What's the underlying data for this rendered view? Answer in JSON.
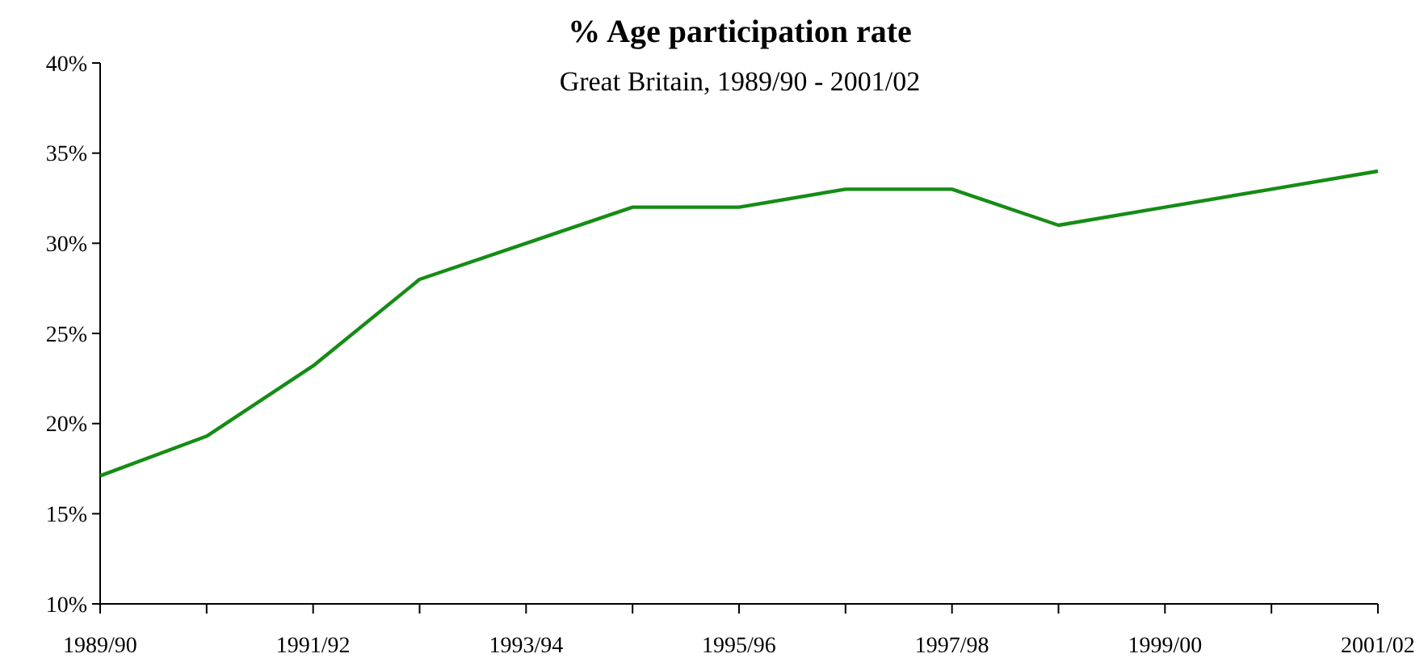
{
  "chart_data": {
    "type": "line",
    "title": "% Age participation rate",
    "subtitle": "Great Britain, 1989/90 - 2001/02",
    "categories": [
      "1989/90",
      null,
      "1991/92",
      null,
      "1993/94",
      null,
      "1995/96",
      null,
      "1997/98",
      null,
      "1999/00",
      null,
      "2001/02"
    ],
    "series": [
      {
        "color": "#168c16",
        "values": [
          17.1,
          19.3,
          23.2,
          28,
          30,
          32,
          32,
          33,
          33,
          31,
          32,
          33,
          34
        ]
      }
    ],
    "ylim": [
      10,
      40
    ],
    "yticks": [
      {
        "value": 10,
        "label": "10%"
      },
      {
        "value": 15,
        "label": "15%"
      },
      {
        "value": 20,
        "label": "20%"
      },
      {
        "value": 25,
        "label": "25%"
      },
      {
        "value": 30,
        "label": "30%"
      },
      {
        "value": 35,
        "label": "35%"
      },
      {
        "value": 40,
        "label": "40%"
      }
    ],
    "grid": false,
    "marker": "none",
    "line_style": "solid"
  }
}
